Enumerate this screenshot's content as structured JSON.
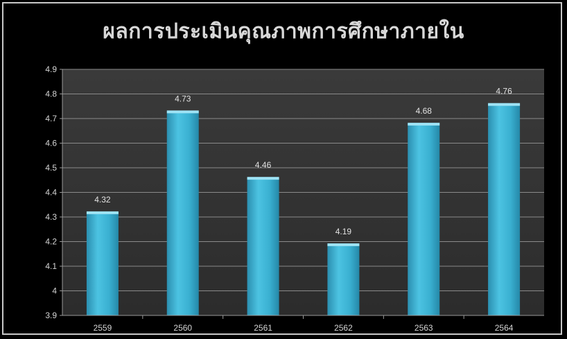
{
  "chart_data": {
    "type": "bar",
    "title": "ผลการประเมินคุณภาพการศึกษาภายใน",
    "categories": [
      "2559",
      "2560",
      "2561",
      "2562",
      "2563",
      "2564"
    ],
    "values": [
      4.32,
      4.73,
      4.46,
      4.19,
      4.68,
      4.76
    ],
    "data_labels": [
      "4.32",
      "4.73",
      "4.46",
      "4.19",
      "4.68",
      "4.76"
    ],
    "yticks": [
      "3.9",
      "4",
      "4.1",
      "4.2",
      "4.3",
      "4.4",
      "4.5",
      "4.6",
      "4.7",
      "4.8",
      "4.9"
    ],
    "ylim": [
      3.9,
      4.9
    ],
    "xlabel": "",
    "ylabel": "",
    "grid": true,
    "legend": "none",
    "colors": {
      "bar": "#3fb3d3",
      "bar_top": "#9ee3f5",
      "plot_bg": "#3d3d3d",
      "grid": "#8a8a8a"
    }
  }
}
